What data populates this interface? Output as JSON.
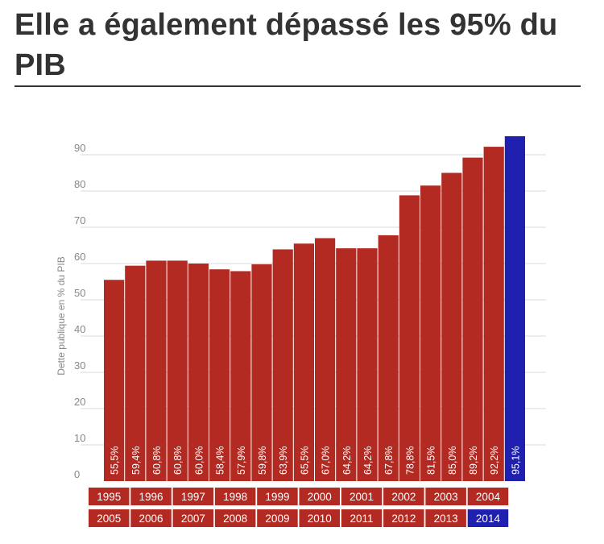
{
  "header": {
    "title": "Elle a également dépassé les 95% du PIB"
  },
  "colors": {
    "bar": "#b22a22",
    "highlight": "#1f1fb0",
    "grid": "#d9d9d9",
    "axis_text": "#888888",
    "title": "#333333"
  },
  "chart_data": {
    "type": "bar",
    "title": "",
    "ylabel": "Dette publique en % du PIB",
    "xlabel": "",
    "ylim": [
      0,
      100
    ],
    "yticks": [
      0,
      10,
      20,
      30,
      40,
      50,
      60,
      70,
      80,
      90
    ],
    "grid": true,
    "categories": [
      "1995",
      "1996",
      "1997",
      "1998",
      "1999",
      "2000",
      "2001",
      "2002",
      "2003",
      "2004",
      "2005",
      "2006",
      "2007",
      "2008",
      "2009",
      "2010",
      "2011",
      "2012",
      "2013",
      "2014"
    ],
    "values": [
      55.5,
      59.4,
      60.8,
      60.8,
      60.0,
      58.4,
      57.9,
      59.8,
      63.9,
      65.5,
      67.0,
      64.2,
      64.2,
      67.8,
      78.8,
      81.5,
      85.0,
      89.2,
      92.2,
      95.1
    ],
    "value_labels": [
      "55,5%",
      "59,4%",
      "60,8%",
      "60,8%",
      "60,0%",
      "58,4%",
      "57,9%",
      "59,8%",
      "63,9%",
      "65,5%",
      "67,0%",
      "64,2%",
      "64,2%",
      "67,8%",
      "78,8%",
      "81,5%",
      "85,0%",
      "89,2%",
      "92,2%",
      "95,1%"
    ],
    "highlighted_category": "2014",
    "year_legend_rows": [
      [
        "1995",
        "1996",
        "1997",
        "1998",
        "1999",
        "2000",
        "2001",
        "2002",
        "2003",
        "2004"
      ],
      [
        "2005",
        "2006",
        "2007",
        "2008",
        "2009",
        "2010",
        "2011",
        "2012",
        "2013",
        "2014"
      ]
    ]
  }
}
